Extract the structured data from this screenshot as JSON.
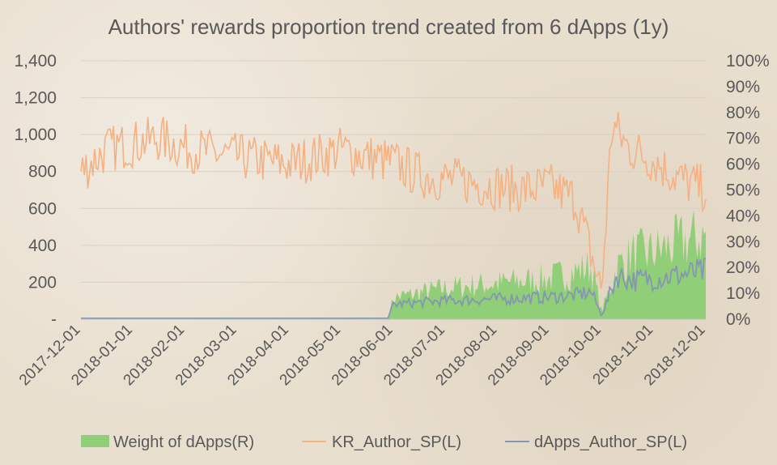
{
  "chart_data": {
    "type": "line",
    "title": "Authors' rewards proportion trend created from 6 dApps (1y)",
    "x_tick_labels": [
      "2017-12-01",
      "2018-01-01",
      "2018-02-01",
      "2018-03-01",
      "2018-04-01",
      "2018-05-01",
      "2018-06-01",
      "2018-07-01",
      "2018-08-01",
      "2018-09-01",
      "2018-10-01",
      "2018-11-01",
      "2018-12-01"
    ],
    "y_left": {
      "ticks": [
        "-",
        "200",
        "400",
        "600",
        "800",
        "1,000",
        "1,200",
        "1,400"
      ],
      "values": [
        0,
        200,
        400,
        600,
        800,
        1000,
        1200,
        1400
      ],
      "ylim": [
        0,
        1400
      ]
    },
    "y_right": {
      "ticks": [
        "0%",
        "10%",
        "20%",
        "30%",
        "40%",
        "50%",
        "60%",
        "70%",
        "80%",
        "90%",
        "100%"
      ],
      "ylim": [
        0,
        1
      ]
    },
    "series": [
      {
        "name": "Weight of dApps(R)",
        "type": "area",
        "axis": "right",
        "color": "#90cf78",
        "x_months": [
          0,
          5.9,
          6.0,
          6.5,
          7.0,
          7.5,
          8.0,
          8.5,
          9.0,
          9.5,
          9.8,
          10.0,
          10.3,
          10.6,
          11.0,
          11.5,
          12.0
        ],
        "values": [
          0,
          0,
          0.09,
          0.11,
          0.13,
          0.14,
          0.15,
          0.16,
          0.17,
          0.2,
          0.22,
          0.03,
          0.22,
          0.27,
          0.28,
          0.32,
          0.35
        ]
      },
      {
        "name": "KR_Author_SP(L)",
        "type": "line",
        "axis": "left",
        "color": "#f4b183",
        "x_months": [
          0,
          0.5,
          1.0,
          1.5,
          2.0,
          2.5,
          3.0,
          3.5,
          4.0,
          4.5,
          5.0,
          5.5,
          6.0,
          6.5,
          7.0,
          7.5,
          8.0,
          8.5,
          9.0,
          9.5,
          9.8,
          10.0,
          10.2,
          10.5,
          11.0,
          11.5,
          12.0
        ],
        "values": [
          800,
          920,
          950,
          980,
          930,
          900,
          880,
          860,
          840,
          880,
          920,
          880,
          850,
          780,
          760,
          740,
          720,
          700,
          720,
          650,
          350,
          150,
          1060,
          930,
          860,
          760,
          700
        ]
      },
      {
        "name": "dApps_Author_SP(L)",
        "type": "line",
        "axis": "left",
        "color": "#8497b0",
        "x_months": [
          0,
          5.9,
          6.0,
          6.5,
          7.0,
          7.5,
          8.0,
          8.5,
          9.0,
          9.5,
          9.8,
          10.0,
          10.3,
          10.6,
          11.0,
          11.5,
          12.0
        ],
        "values": [
          5,
          5,
          80,
          90,
          100,
          105,
          110,
          115,
          120,
          130,
          150,
          20,
          240,
          210,
          220,
          240,
          260
        ]
      }
    ],
    "legend": {
      "placement": "bottom",
      "entries": [
        "Weight of dApps(R)",
        "KR_Author_SP(L)",
        "dApps_Author_SP(L)"
      ]
    }
  }
}
